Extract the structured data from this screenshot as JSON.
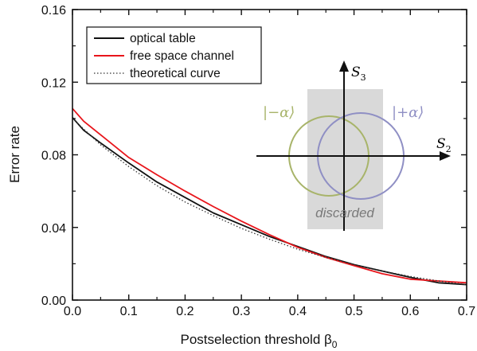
{
  "chart_data": {
    "type": "line",
    "xlabel": "Postselection threshold β",
    "xlabel_subscript": "0",
    "ylabel": "Error rate",
    "xlim": [
      0.0,
      0.7
    ],
    "ylim": [
      0.0,
      0.16
    ],
    "xticks": [
      "0.0",
      "0.1",
      "0.2",
      "0.3",
      "0.4",
      "0.5",
      "0.6",
      "0.7"
    ],
    "yticks": [
      "0.00",
      "0.04",
      "0.08",
      "0.12",
      "0.16"
    ],
    "grid": false,
    "legend_position": "top-left",
    "colors": {
      "optical_table": "#111111",
      "free_space": "#e8151b",
      "theory": "#333333"
    },
    "series": [
      {
        "name": "optical table",
        "style": "solid",
        "x": [
          0.0,
          0.02,
          0.05,
          0.1,
          0.15,
          0.2,
          0.25,
          0.3,
          0.35,
          0.4,
          0.45,
          0.5,
          0.55,
          0.6,
          0.65,
          0.7
        ],
        "y": [
          0.1005,
          0.0935,
          0.0865,
          0.0755,
          0.065,
          0.0565,
          0.048,
          0.0415,
          0.035,
          0.0295,
          0.024,
          0.0195,
          0.016,
          0.0125,
          0.0095,
          0.0085
        ]
      },
      {
        "name": "free space channel",
        "style": "solid",
        "x": [
          0.0,
          0.02,
          0.05,
          0.1,
          0.15,
          0.2,
          0.25,
          0.3,
          0.35,
          0.4,
          0.45,
          0.5,
          0.55,
          0.6,
          0.65,
          0.7
        ],
        "y": [
          0.1055,
          0.0985,
          0.091,
          0.0785,
          0.069,
          0.06,
          0.0515,
          0.0435,
          0.036,
          0.029,
          0.0235,
          0.019,
          0.0145,
          0.0115,
          0.0105,
          0.0095
        ]
      },
      {
        "name": "theoretical curve",
        "style": "dotted",
        "x": [
          0.0,
          0.05,
          0.1,
          0.15,
          0.2,
          0.25,
          0.3,
          0.35,
          0.4,
          0.45,
          0.5,
          0.55,
          0.6,
          0.65,
          0.7
        ],
        "y": [
          0.1,
          0.0855,
          0.0735,
          0.063,
          0.054,
          0.0465,
          0.0395,
          0.0335,
          0.028,
          0.0235,
          0.0195,
          0.016,
          0.013,
          0.0105,
          0.0085
        ]
      }
    ],
    "inset": {
      "axis_horizontal_label": "S",
      "axis_horizontal_sub": "2",
      "axis_vertical_label": "S",
      "axis_vertical_sub": "3",
      "ket_minus": "|−α⟩",
      "ket_plus": "|+α⟩",
      "discarded_label": "discarded",
      "colors": {
        "minus_circle": "#a8b46a",
        "plus_circle": "#8f8fc4",
        "band": "#d9d9d9"
      }
    }
  }
}
